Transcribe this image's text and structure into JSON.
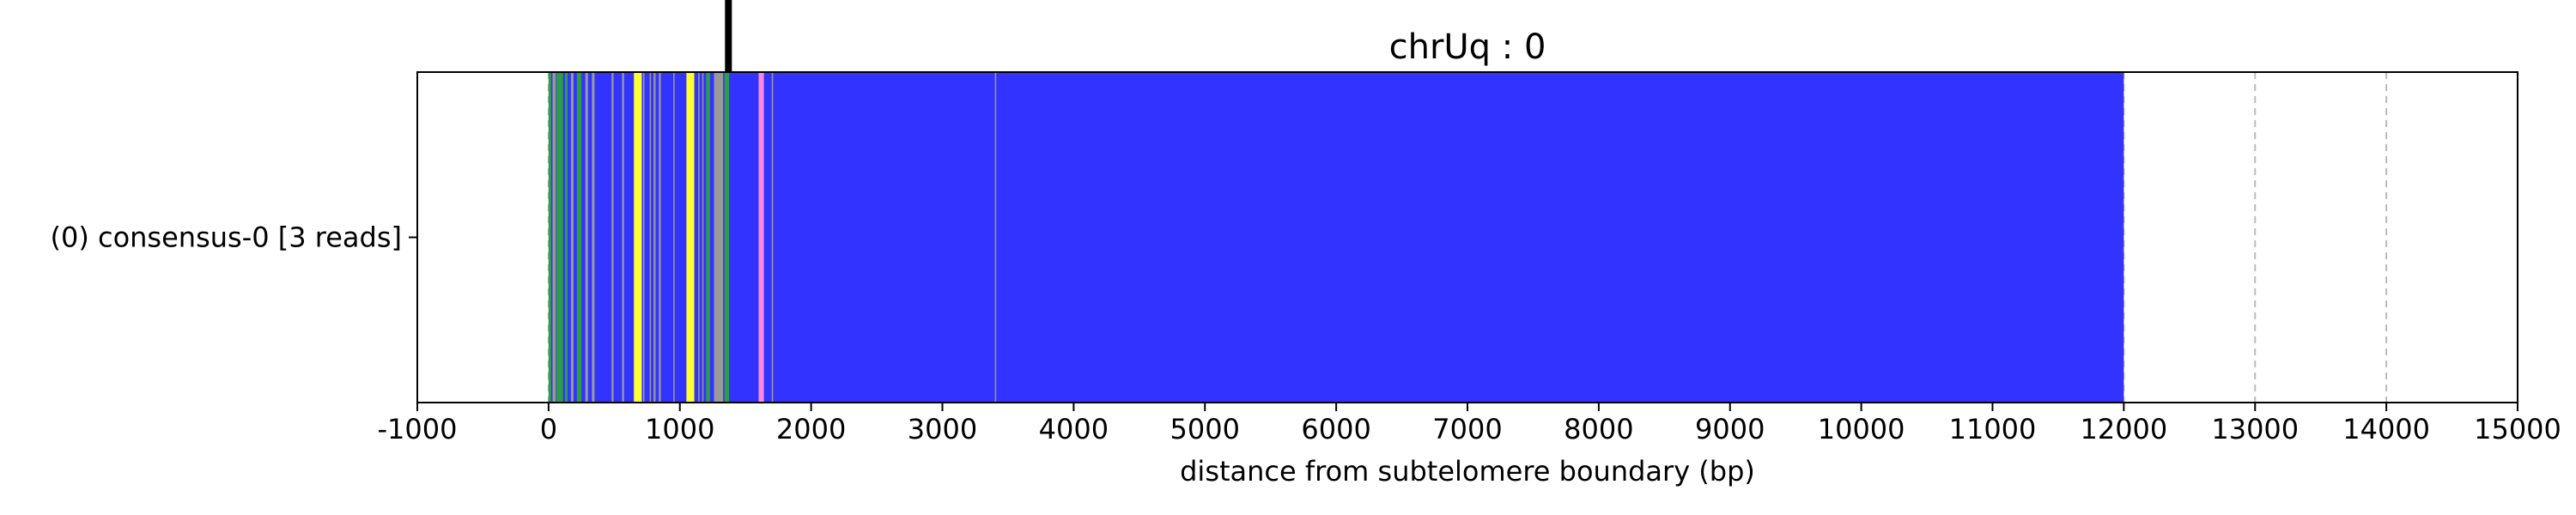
{
  "chart_data": {
    "type": "bar",
    "title": "chrUq : 0",
    "xlabel": "distance from subtelomere boundary (bp)",
    "ylabel": "",
    "xlim": [
      -1000,
      15000
    ],
    "xticks": [
      -1000,
      0,
      1000,
      2000,
      3000,
      4000,
      5000,
      6000,
      7000,
      8000,
      9000,
      10000,
      11000,
      12000,
      13000,
      14000,
      15000
    ],
    "grid": {
      "x": true,
      "style": "dashed"
    },
    "categories": [
      "(0) consensus-0 [3 reads]"
    ],
    "boundary_marker": 1370,
    "colors": {
      "blue": "#3333ff",
      "green": "#2e9e44",
      "yellow": "#ffff33",
      "gray": "#999999",
      "pink": "#ff88dd",
      "marker": "#000000"
    },
    "tracks": [
      {
        "name": "(0) consensus-0 [3 reads]",
        "start": 0,
        "end": 12000,
        "base_color": "blue",
        "segments": [
          {
            "start": 0,
            "end": 20,
            "color": "green"
          },
          {
            "start": 30,
            "end": 55,
            "color": "gray"
          },
          {
            "start": 60,
            "end": 110,
            "color": "green"
          },
          {
            "start": 125,
            "end": 145,
            "color": "green"
          },
          {
            "start": 170,
            "end": 190,
            "color": "gray"
          },
          {
            "start": 215,
            "end": 250,
            "color": "green"
          },
          {
            "start": 280,
            "end": 300,
            "color": "gray"
          },
          {
            "start": 330,
            "end": 350,
            "color": "gray"
          },
          {
            "start": 480,
            "end": 495,
            "color": "gray"
          },
          {
            "start": 560,
            "end": 575,
            "color": "gray"
          },
          {
            "start": 650,
            "end": 710,
            "color": "yellow"
          },
          {
            "start": 720,
            "end": 730,
            "color": "gray"
          },
          {
            "start": 770,
            "end": 780,
            "color": "gray"
          },
          {
            "start": 800,
            "end": 815,
            "color": "gray"
          },
          {
            "start": 840,
            "end": 855,
            "color": "gray"
          },
          {
            "start": 950,
            "end": 960,
            "color": "gray"
          },
          {
            "start": 1050,
            "end": 1110,
            "color": "yellow"
          },
          {
            "start": 1140,
            "end": 1150,
            "color": "gray"
          },
          {
            "start": 1170,
            "end": 1180,
            "color": "gray"
          },
          {
            "start": 1200,
            "end": 1230,
            "color": "green"
          },
          {
            "start": 1260,
            "end": 1330,
            "color": "gray"
          },
          {
            "start": 1340,
            "end": 1375,
            "color": "green"
          },
          {
            "start": 1600,
            "end": 1640,
            "color": "pink"
          },
          {
            "start": 1700,
            "end": 1710,
            "color": "gray"
          },
          {
            "start": 3400,
            "end": 3410,
            "color": "gray"
          }
        ]
      }
    ]
  }
}
